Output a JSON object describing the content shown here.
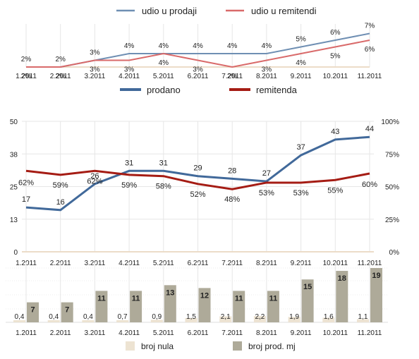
{
  "chart_data": [
    {
      "type": "line",
      "categories": [
        "1.2011",
        "2.2011",
        "3.2011",
        "4.2011",
        "5.2011",
        "6.2011",
        "7.2011",
        "8.2011",
        "9.2011",
        "10.2011",
        "11.2011"
      ],
      "series": [
        {
          "name": "udio u prodaji",
          "color": "#6f8fb3",
          "values": [
            2,
            2,
            3,
            4,
            4,
            4,
            4,
            4,
            5,
            6,
            7
          ],
          "labels": [
            "2%",
            "2%",
            "3%",
            "4%",
            "4%",
            "4%",
            "4%",
            "4%",
            "5%",
            "6%",
            "7%"
          ]
        },
        {
          "name": "udio u remitendi",
          "color": "#d96a6a",
          "values": [
            2,
            2,
            3,
            3,
            4,
            3,
            2,
            3,
            4,
            5,
            6
          ],
          "labels": [
            "2%",
            "2%",
            "3%",
            "3%",
            "4%",
            "3%",
            "2%",
            "3%",
            "4%",
            "5%",
            "6%"
          ]
        }
      ],
      "grid": true,
      "legend_position": "top"
    },
    {
      "type": "line",
      "categories": [
        "1.2011",
        "2.2011",
        "3.2011",
        "4.2011",
        "5.2011",
        "6.2011",
        "7.2011",
        "8.2011",
        "9.2011",
        "10.2011",
        "11.2011"
      ],
      "series": [
        {
          "name": "prodano",
          "axis": "left",
          "color": "#41699a",
          "values": [
            17,
            16,
            26,
            31,
            31,
            29,
            28,
            27,
            37,
            43,
            44
          ],
          "labels": [
            "17",
            "16",
            "26",
            "31",
            "31",
            "29",
            "28",
            "27",
            "37",
            "43",
            "44"
          ]
        },
        {
          "name": "remitenda",
          "axis": "right",
          "color": "#a51c14",
          "values": [
            62,
            59,
            62,
            59,
            58,
            52,
            48,
            53,
            53,
            55,
            60
          ],
          "labels": [
            "62%",
            "59%",
            "62%",
            "59%",
            "58%",
            "52%",
            "48%",
            "53%",
            "53%",
            "55%",
            "60%"
          ]
        }
      ],
      "y_left": {
        "ticks": [
          "0",
          "13",
          "25",
          "38",
          "50"
        ],
        "ylim": [
          0,
          50
        ]
      },
      "y_right": {
        "ticks": [
          "0%",
          "25%",
          "50%",
          "75%",
          "100%"
        ],
        "ylim": [
          0,
          100
        ]
      },
      "grid": true,
      "legend_position": "top"
    },
    {
      "type": "bar",
      "categories": [
        "1.2011",
        "2.2011",
        "3.2011",
        "4.2011",
        "5.2011",
        "6.2011",
        "7.2011",
        "8.2011",
        "9.2011",
        "10.2011",
        "11.2011"
      ],
      "series": [
        {
          "name": "broj nula",
          "color": "#ede3d2",
          "values": [
            0.4,
            0.4,
            0.4,
            0.7,
            0.9,
            1.5,
            2.1,
            2.2,
            1.9,
            1.6,
            1.1
          ],
          "labels": [
            "0,4",
            "0,4",
            "0,4",
            "0,7",
            "0,9",
            "1,5",
            "2,1",
            "2,2",
            "1,9",
            "1,6",
            "1,1"
          ]
        },
        {
          "name": "broj prod. mj",
          "color": "#aeaa99",
          "values": [
            7,
            7,
            11,
            11,
            13,
            12,
            11,
            11,
            15,
            18,
            19
          ],
          "labels": [
            "7",
            "7",
            "11",
            "11",
            "13",
            "12",
            "11",
            "11",
            "15",
            "18",
            "19"
          ]
        }
      ],
      "ylim": [
        0,
        19
      ],
      "grid": true,
      "legend_position": "bottom"
    }
  ]
}
